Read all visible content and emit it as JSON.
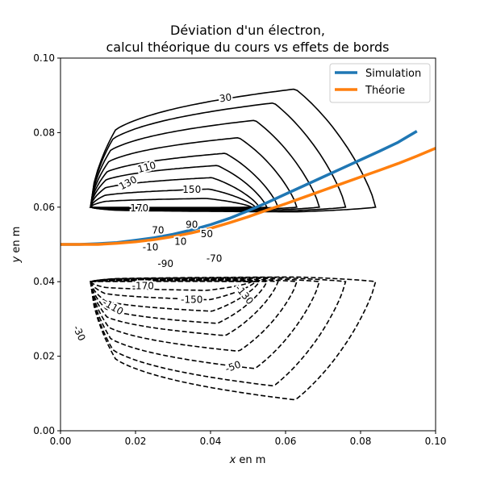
{
  "chart_data": {
    "type": "line",
    "title_lines": [
      "Déviation d'un électron,",
      "calcul théorique du cours vs effets de bords"
    ],
    "xlabel_var": "x",
    "xlabel_rest": " en m",
    "ylabel_var": "y",
    "ylabel_rest": " en m",
    "xlim": [
      0,
      0.1
    ],
    "ylim": [
      0,
      0.1
    ],
    "xticks": [
      0.0,
      0.02,
      0.04,
      0.06,
      0.08,
      0.1
    ],
    "yticks": [
      0.0,
      0.02,
      0.04,
      0.06,
      0.08,
      0.1
    ],
    "xtick_labels": [
      "0.00",
      "0.02",
      "0.04",
      "0.06",
      "0.08",
      "0.10"
    ],
    "ytick_labels": [
      "0.00",
      "0.02",
      "0.04",
      "0.06",
      "0.08",
      "0.10"
    ],
    "legend_position": "top-right",
    "grid": false,
    "series": [
      {
        "name": "Simulation",
        "color": "#1f77b4",
        "x": [
          0,
          0.005,
          0.01,
          0.015,
          0.02,
          0.025,
          0.03,
          0.035,
          0.04,
          0.045,
          0.05,
          0.055,
          0.06,
          0.065,
          0.07,
          0.075,
          0.08,
          0.085,
          0.09,
          0.095
        ],
        "y": [
          0.05,
          0.05,
          0.0502,
          0.0505,
          0.0511,
          0.0518,
          0.0527,
          0.0539,
          0.0553,
          0.057,
          0.059,
          0.0612,
          0.0635,
          0.0658,
          0.0681,
          0.0704,
          0.0727,
          0.075,
          0.0774,
          0.0804
        ]
      },
      {
        "name": "Théorie",
        "color": "#ff7f0e",
        "x": [
          0,
          0.005,
          0.01,
          0.015,
          0.02,
          0.025,
          0.03,
          0.035,
          0.04,
          0.045,
          0.05,
          0.055,
          0.06,
          0.065,
          0.07,
          0.075,
          0.08,
          0.085,
          0.09,
          0.095,
          0.1
        ],
        "y": [
          0.05,
          0.05,
          0.05,
          0.0503,
          0.0507,
          0.0513,
          0.0521,
          0.0531,
          0.0543,
          0.0558,
          0.0574,
          0.0592,
          0.0609,
          0.0627,
          0.0645,
          0.0663,
          0.0681,
          0.0699,
          0.0717,
          0.0737,
          0.0758
        ]
      }
    ],
    "contours": {
      "positive_center": [
        0.008,
        0.06
      ],
      "negative_center": [
        0.008,
        0.04
      ],
      "levels": [
        {
          "value": 30,
          "x_right": 0.084,
          "y_extent": 0.034
        },
        {
          "value": 50,
          "x_right": 0.076,
          "y_extent": 0.03
        },
        {
          "value": 70,
          "x_right": 0.069,
          "y_extent": 0.025
        },
        {
          "value": 90,
          "x_right": 0.063,
          "y_extent": 0.02
        },
        {
          "value": 110,
          "x_right": 0.058,
          "y_extent": 0.0155
        },
        {
          "value": 130,
          "x_right": 0.055,
          "y_extent": 0.012
        },
        {
          "value": 150,
          "x_right": 0.053,
          "y_extent": 0.0085
        },
        {
          "value": 170,
          "x_right": 0.052,
          "y_extent": 0.0052
        },
        {
          "value": 190,
          "x_right": 0.051,
          "y_extent": 0.0025
        }
      ],
      "positive_labels": [
        {
          "text": "30",
          "x": 0.044,
          "y": 0.0893,
          "angle": 8
        },
        {
          "text": "110",
          "x": 0.023,
          "y": 0.0707,
          "angle": 15
        },
        {
          "text": "130",
          "x": 0.018,
          "y": 0.0665,
          "angle": 28
        },
        {
          "text": "150",
          "x": 0.035,
          "y": 0.0647,
          "angle": 0
        },
        {
          "text": "170",
          "x": 0.021,
          "y": 0.0597,
          "angle": 0
        },
        {
          "text": "70",
          "x": 0.026,
          "y": 0.0538,
          "angle": 0
        },
        {
          "text": "90",
          "x": 0.035,
          "y": 0.0553,
          "angle": 0
        },
        {
          "text": "50",
          "x": 0.039,
          "y": 0.0528,
          "angle": 0
        },
        {
          "text": "10",
          "x": 0.032,
          "y": 0.0508,
          "angle": 0
        }
      ],
      "negative_labels": [
        {
          "text": "-10",
          "x": 0.024,
          "y": 0.0492,
          "angle": 0
        },
        {
          "text": "-70",
          "x": 0.041,
          "y": 0.0462,
          "angle": 0
        },
        {
          "text": "-90",
          "x": 0.028,
          "y": 0.0448,
          "angle": 0
        },
        {
          "text": "-170",
          "x": 0.022,
          "y": 0.0389,
          "angle": 0
        },
        {
          "text": "-150",
          "x": 0.035,
          "y": 0.0352,
          "angle": 0
        },
        {
          "text": "-130",
          "x": 0.049,
          "y": 0.0365,
          "angle": -50
        },
        {
          "text": "-110",
          "x": 0.014,
          "y": 0.0332,
          "angle": -30
        },
        {
          "text": "-50",
          "x": 0.046,
          "y": 0.0172,
          "angle": 20
        },
        {
          "text": "-30",
          "x": 0.005,
          "y": 0.0262,
          "angle": -65
        }
      ]
    }
  }
}
